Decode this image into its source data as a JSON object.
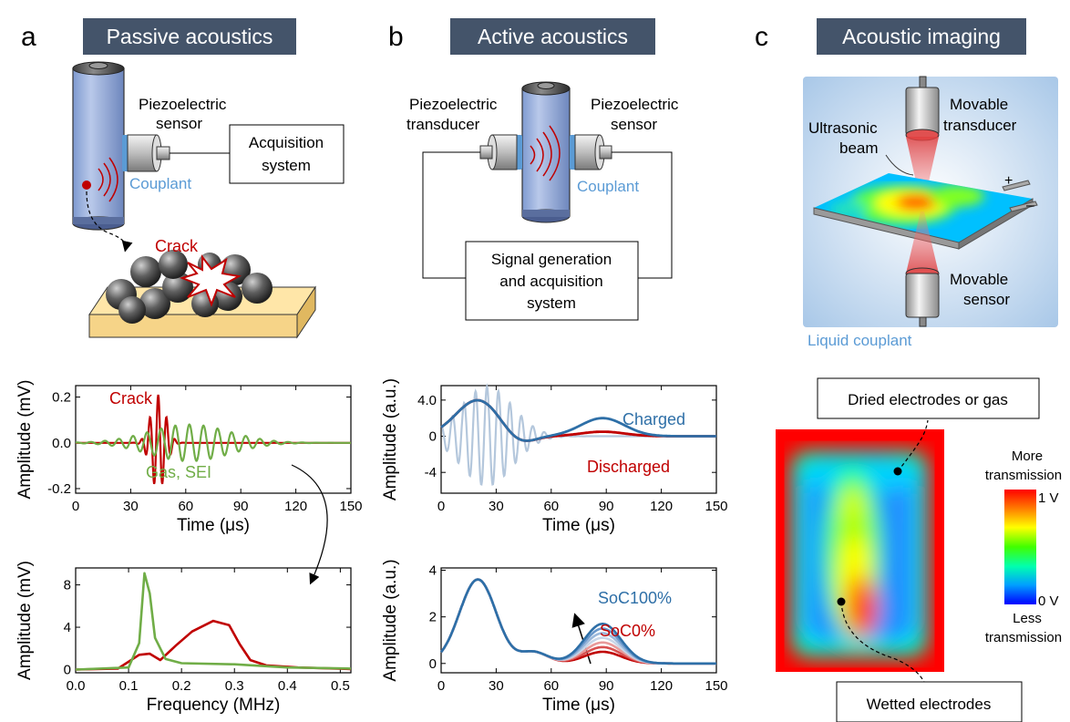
{
  "panels": {
    "a": {
      "letter": "a",
      "title": "Passive acoustics"
    },
    "b": {
      "letter": "b",
      "title": "Active acoustics"
    },
    "c": {
      "letter": "c",
      "title": "Acoustic imaging"
    }
  },
  "schematic_a": {
    "sensor_label_1": "Piezoelectric",
    "sensor_label_2": "sensor",
    "couplant": "Couplant",
    "acq_1": "Acquisition",
    "acq_2": "system",
    "crack": "Crack"
  },
  "schematic_b": {
    "transducer_1": "Piezoelectric",
    "transducer_2": "transducer",
    "sensor_1": "Piezoelectric",
    "sensor_2": "sensor",
    "couplant": "Couplant",
    "sig_1": "Signal generation",
    "sig_2": "and acquisition",
    "sig_3": "system"
  },
  "schematic_c": {
    "movable_transducer_1": "Movable",
    "movable_transducer_2": "transducer",
    "beam_1": "Ultrasonic",
    "beam_2": "beam",
    "plus": "+",
    "minus": "–",
    "movable_sensor_1": "Movable",
    "movable_sensor_2": "sensor",
    "liquid_couplant": "Liquid couplant"
  },
  "acoustic_map": {
    "callout_top": "Dried electrodes or gas",
    "callout_bottom": "Wetted electrodes",
    "legend_more_1": "More",
    "legend_more_2": "transmission",
    "legend_max": "1 V",
    "legend_min": "0 V",
    "legend_less_1": "Less",
    "legend_less_2": "transmission",
    "colors": [
      "#0000ff",
      "#00a0ff",
      "#00ffb0",
      "#40ff00",
      "#ffff00",
      "#ff8000",
      "#ff0000"
    ]
  },
  "chart_data": [
    {
      "id": "a_top",
      "type": "line",
      "xlabel": "Time (μs)",
      "ylabel": "Amplitude (mV)",
      "xlim": [
        0,
        150
      ],
      "ylim": [
        -0.22,
        0.25
      ],
      "xticks": [
        "0",
        "30",
        "60",
        "90",
        "120",
        "150"
      ],
      "yticks": [
        "0.2",
        "0.0",
        "-0.2"
      ],
      "ytick_values": [
        0.2,
        0.0,
        -0.2
      ],
      "annotations": [
        "Crack",
        "Gas, SEI"
      ],
      "series": [
        {
          "name": "Crack",
          "color": "#c00000",
          "shape": "burst",
          "center": 45,
          "amplitude": 0.21,
          "width": 4,
          "freq": 0.22
        },
        {
          "name": "Gas, SEI",
          "color": "#70ad47",
          "shape": "burst",
          "center": 62,
          "amplitude": 0.08,
          "width": 22,
          "freq": 0.13
        }
      ]
    },
    {
      "id": "a_bottom",
      "type": "line",
      "xlabel": "Frequency (MHz)",
      "ylabel": "Amplitude (mV)",
      "xlim": [
        0,
        0.52
      ],
      "ylim": [
        -0.3,
        9.6
      ],
      "xticks": [
        "0.0",
        "0.1",
        "0.2",
        "0.3",
        "0.4",
        "0.5"
      ],
      "yticks": [
        "8",
        "4",
        "0"
      ],
      "ytick_values": [
        8,
        4,
        0
      ],
      "series": [
        {
          "name": "Crack",
          "color": "#c00000",
          "points": [
            [
              0,
              0
            ],
            [
              0.08,
              0.1
            ],
            [
              0.12,
              1.4
            ],
            [
              0.14,
              1.5
            ],
            [
              0.16,
              0.9
            ],
            [
              0.19,
              2.3
            ],
            [
              0.22,
              3.6
            ],
            [
              0.26,
              4.6
            ],
            [
              0.29,
              4.2
            ],
            [
              0.31,
              2.4
            ],
            [
              0.33,
              0.9
            ],
            [
              0.36,
              0.4
            ],
            [
              0.42,
              0.2
            ],
            [
              0.52,
              0.05
            ]
          ]
        },
        {
          "name": "Gas, SEI",
          "color": "#70ad47",
          "points": [
            [
              0,
              0
            ],
            [
              0.1,
              0.2
            ],
            [
              0.12,
              2.5
            ],
            [
              0.13,
              9.1
            ],
            [
              0.14,
              7.2
            ],
            [
              0.15,
              3.0
            ],
            [
              0.17,
              1.0
            ],
            [
              0.2,
              0.6
            ],
            [
              0.3,
              0.5
            ],
            [
              0.4,
              0.2
            ],
            [
              0.52,
              0.1
            ]
          ]
        }
      ]
    },
    {
      "id": "b_top",
      "type": "line",
      "xlabel": "Time (μs)",
      "ylabel": "Amplitude (a.u.)",
      "xlim": [
        0,
        150
      ],
      "ylim": [
        -6.3,
        5.6
      ],
      "xticks": [
        "0",
        "30",
        "60",
        "90",
        "120",
        "150"
      ],
      "yticks": [
        "4.0",
        "0",
        "-4"
      ],
      "ytick_values": [
        4,
        0,
        -4
      ],
      "annotations": [
        "Charged",
        "Discharged"
      ],
      "series": [
        {
          "name": "Excitation",
          "color": "#b4c7dc",
          "shape": "burst",
          "center": 25,
          "amplitude": 5.5,
          "width": 14,
          "freq": 0.16
        },
        {
          "name": "Discharged",
          "color": "#c00000",
          "shape": "pulses",
          "pulses": [
            [
              20,
              4.0,
              12
            ],
            [
              88,
              0.5,
              12
            ]
          ]
        },
        {
          "name": "Charged",
          "color": "#2e6fa7",
          "shape": "pulses",
          "pulses": [
            [
              20,
              4.0,
              12
            ],
            [
              88,
              2.0,
              12
            ]
          ]
        }
      ]
    },
    {
      "id": "b_bottom",
      "type": "line",
      "xlabel": "Time (μs)",
      "ylabel": "Amplitude (a.u.)",
      "xlim": [
        0,
        150
      ],
      "ylim": [
        -0.4,
        4.1
      ],
      "xticks": [
        "0",
        "30",
        "60",
        "90",
        "120",
        "150"
      ],
      "yticks": [
        "4",
        "2",
        "0"
      ],
      "ytick_values": [
        4,
        2,
        0
      ],
      "annotations": [
        "SoC100%",
        "SoC0%"
      ],
      "series_family": {
        "count": 7,
        "pulses_base": [
          [
            20,
            3.6,
            10
          ],
          [
            45,
            1.2,
            9
          ]
        ],
        "late_center": 88,
        "late_width": 10,
        "late_min": 0.5,
        "late_max": 1.7,
        "colors": [
          "#c00000",
          "#d85050",
          "#e89a9a",
          "#c8d6e8",
          "#9bb8db",
          "#6a98cb",
          "#2e6fa7"
        ]
      }
    }
  ]
}
